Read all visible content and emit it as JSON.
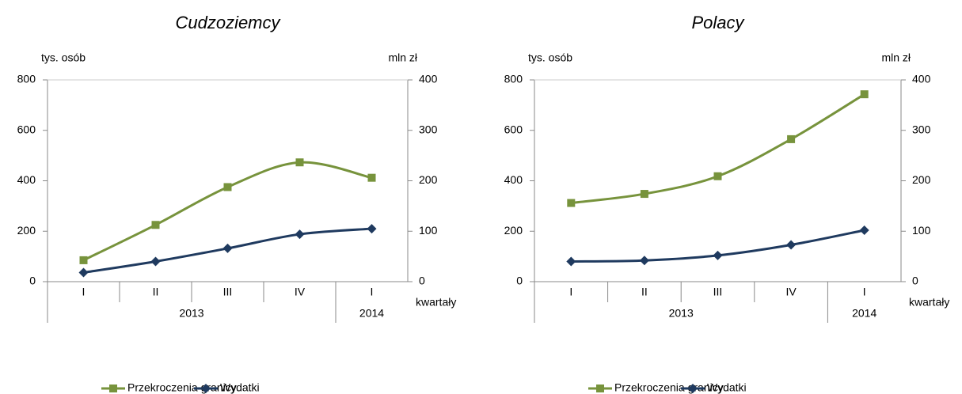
{
  "chart_data": [
    {
      "type": "line",
      "title": "Cudzoziemcy",
      "y_label": "tys. osób",
      "y2_label": "mln zł",
      "x_label": "kwartały",
      "categories": [
        "I",
        "II",
        "III",
        "IV",
        "I"
      ],
      "years": [
        "2013",
        "2013",
        "2013",
        "2013",
        "2014"
      ],
      "ylim": [
        0,
        800
      ],
      "yticks": [
        0,
        200,
        400,
        600,
        800
      ],
      "y2lim": [
        0,
        400
      ],
      "y2ticks": [
        0,
        100,
        200,
        300,
        400
      ],
      "series": [
        {
          "name": "Przekroczenia granicy",
          "color": "#77933c",
          "marker": "square",
          "values": [
            85,
            225,
            375,
            473,
            412
          ]
        },
        {
          "name": "Wydatki",
          "color": "#1f3a5f",
          "marker": "diamond",
          "axis": "y2",
          "values": [
            18,
            40,
            66,
            94,
            105
          ]
        }
      ]
    },
    {
      "type": "line",
      "title": "Polacy",
      "y_label": "tys. osób",
      "y2_label": "mln zł",
      "x_label": "kwartały",
      "categories": [
        "I",
        "II",
        "III",
        "IV",
        "I"
      ],
      "years": [
        "2013",
        "2013",
        "2013",
        "2013",
        "2014"
      ],
      "ylim": [
        0,
        800
      ],
      "yticks": [
        0,
        200,
        400,
        600,
        800
      ],
      "y2lim": [
        0,
        400
      ],
      "y2ticks": [
        0,
        100,
        200,
        300,
        400
      ],
      "series": [
        {
          "name": "Przekroczenia granicy",
          "color": "#77933c",
          "marker": "square",
          "values": [
            312,
            348,
            418,
            565,
            743
          ]
        },
        {
          "name": "Wydatki",
          "color": "#1f3a5f",
          "marker": "diamond",
          "axis": "y2",
          "values": [
            40,
            42,
            52,
            73,
            102
          ]
        }
      ]
    }
  ]
}
